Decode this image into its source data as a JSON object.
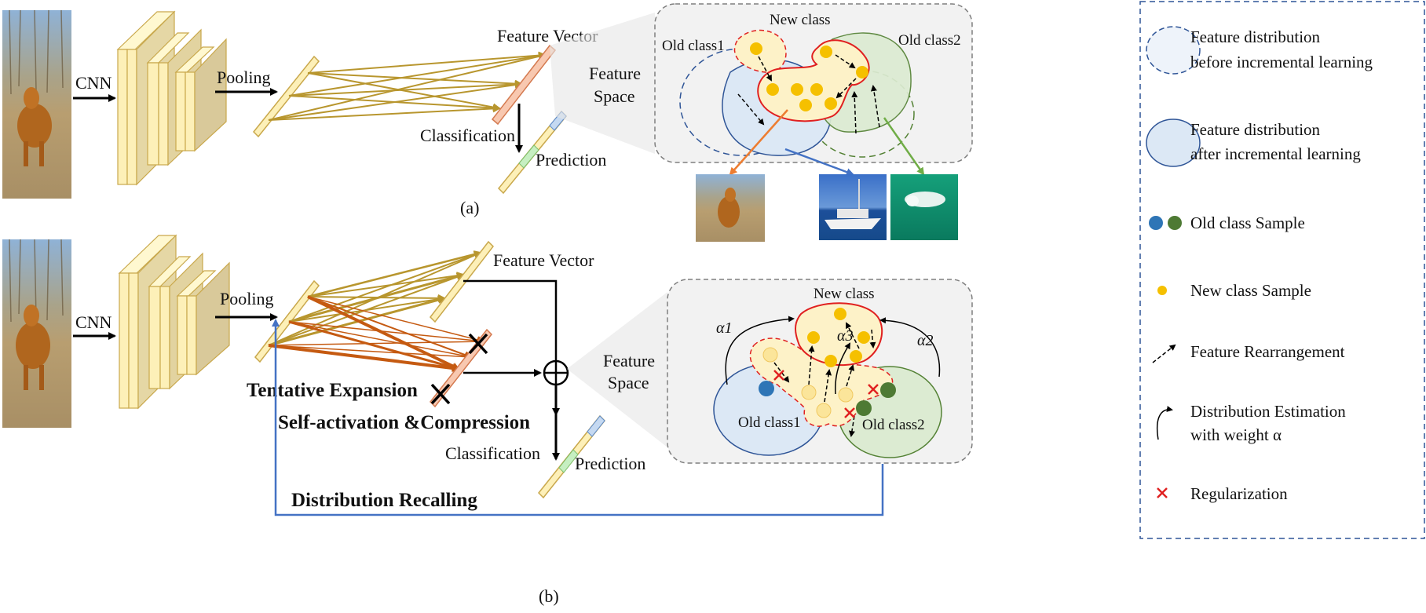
{
  "labels": {
    "cnn": "CNN",
    "pooling": "Pooling",
    "feature_vector": "Feature Vector",
    "classification": "Classification",
    "prediction": "Prediction",
    "feature_space_line1": "Feature",
    "feature_space_line2": "Space",
    "new_class": "New class",
    "old_class1": "Old class1",
    "old_class2": "Old class2",
    "caption_a": "(a)",
    "caption_b": "(b)",
    "tentative_expansion": "Tentative Expansion",
    "self_activation": "Self-activation &Compression",
    "distribution_recalling": "Distribution Recalling",
    "alpha1": "α1",
    "alpha2": "α2",
    "alpha3": "α3"
  },
  "legend": {
    "before_line1": "Feature distribution",
    "before_line2": "before incremental learning",
    "after_line1": "Feature distribution",
    "after_line2": "after incremental learning",
    "old_sample": "Old class Sample",
    "new_sample": "New class Sample",
    "rearrangement": "Feature Rearrangement",
    "estimation_line1": "Distribution Estimation",
    "estimation_line2": "with weight α",
    "regularization": "Regularization"
  },
  "colors": {
    "old_class1_fill": "#dce8f5",
    "old_class1_stroke": "#2f5597",
    "old_class2_fill": "#dcebd2",
    "old_class2_stroke": "#548235",
    "new_class_fill": "#fdf2c8",
    "new_class_stroke": "#e02020",
    "sample_yellow": "#f5c000",
    "sample_blue": "#2e75b6",
    "sample_green": "#4e7a34",
    "fc_gold": "#b8962e",
    "fc_orange": "#c55a11",
    "recall_line": "#4472c4",
    "panel_bg": "#f2f2f2"
  },
  "icons": [
    "dog-photo",
    "boat-photo",
    "beluga-photo",
    "regularization-x-icon",
    "sum-circle-icon",
    "pruned-x-icon"
  ]
}
